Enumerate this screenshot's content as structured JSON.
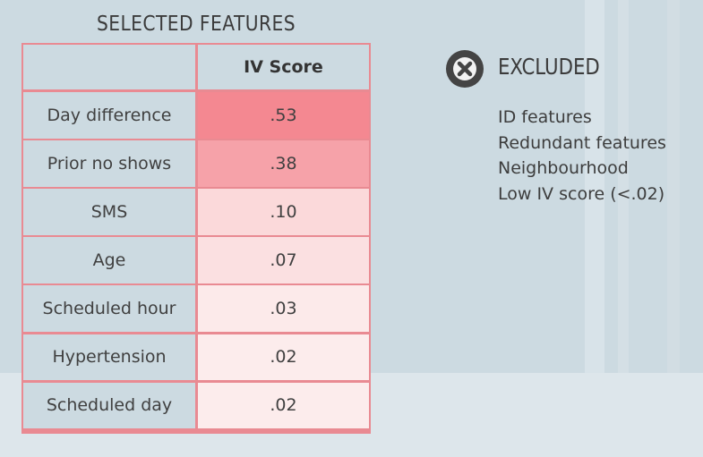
{
  "title": "SELECTED FEATURES",
  "excluded": {
    "title": "EXCLUDED",
    "icon": "close-circle-icon",
    "items": [
      "ID features",
      "Redundant features",
      "Neighbourhood",
      "Low IV score (<.02)"
    ]
  },
  "chart_data": {
    "type": "table",
    "title": "SELECTED FEATURES",
    "columns": [
      "",
      "IV Score"
    ],
    "rows": [
      {
        "feature": "Day difference",
        "iv": ".53",
        "value": 0.53
      },
      {
        "feature": "Prior no shows",
        "iv": ".38",
        "value": 0.38
      },
      {
        "feature": "SMS",
        "iv": ".10",
        "value": 0.1
      },
      {
        "feature": "Age",
        "iv": ".07",
        "value": 0.07
      },
      {
        "feature": "Scheduled hour",
        "iv": ".03",
        "value": 0.03
      },
      {
        "feature": "Hypertension",
        "iv": ".02",
        "value": 0.02
      },
      {
        "feature": "Scheduled day",
        "iv": ".02",
        "value": 0.02
      }
    ],
    "colors": {
      "high": "#f48891",
      "low": "#fdf3f2",
      "border": "#e98a92"
    }
  }
}
